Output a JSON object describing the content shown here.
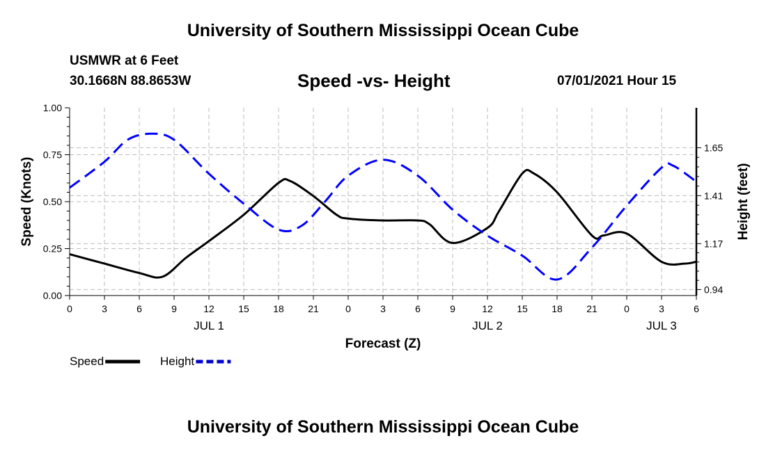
{
  "header": {
    "title": "University of Southern Mississippi Ocean Cube",
    "station": "USMWR at 6 Feet",
    "coords": "30.1668N  88.8653W",
    "datetime": "07/01/2021 Hour 15"
  },
  "footer": {
    "title": "University of Southern Mississippi Ocean Cube"
  },
  "chart_data": {
    "type": "line",
    "title": "Speed -vs- Height",
    "xlabel": "Forecast (Z)",
    "ylabel": "Speed (Knots)",
    "y2label": "Height (feet)",
    "x_hours_range": [
      0,
      54
    ],
    "ylim": [
      0,
      1.0
    ],
    "y2lim": [
      0.91,
      1.85
    ],
    "grid": true,
    "xticks": {
      "hours": [
        0,
        3,
        6,
        9,
        12,
        15,
        18,
        21,
        24,
        27,
        30,
        33,
        36,
        39,
        42,
        45,
        48,
        51,
        54
      ],
      "labels": [
        "0",
        "3",
        "6",
        "9",
        "12",
        "15",
        "18",
        "21",
        "0",
        "3",
        "6",
        "9",
        "12",
        "15",
        "18",
        "21",
        "0",
        "3",
        "6"
      ]
    },
    "day_labels": [
      {
        "hour": 12,
        "label": "JUL 1"
      },
      {
        "hour": 36,
        "label": "JUL 2"
      },
      {
        "hour": 51,
        "label": "JUL 3"
      }
    ],
    "yticks": {
      "values": [
        0,
        0.25,
        0.5,
        0.75,
        1.0
      ],
      "labels": [
        "0.00",
        "0.25",
        "0.50",
        "0.75",
        "1.00"
      ]
    },
    "y2ticks": {
      "values": [
        0.94,
        1.17,
        1.41,
        1.65
      ],
      "labels": [
        "0.94",
        "1.17",
        "1.41",
        "1.65"
      ]
    },
    "series": [
      {
        "name": "Speed",
        "axis": "left",
        "color": "#000000",
        "style": "solid",
        "x": [
          0,
          3,
          6,
          8,
          10,
          12,
          15,
          18,
          19,
          21,
          23,
          24,
          27,
          30,
          31,
          33,
          36,
          37,
          39,
          40,
          42,
          45,
          46,
          48,
          51,
          53,
          54
        ],
        "y": [
          0.22,
          0.17,
          0.12,
          0.1,
          0.2,
          0.29,
          0.43,
          0.6,
          0.61,
          0.53,
          0.43,
          0.41,
          0.4,
          0.4,
          0.38,
          0.28,
          0.36,
          0.45,
          0.65,
          0.65,
          0.55,
          0.32,
          0.32,
          0.33,
          0.18,
          0.17,
          0.18
        ]
      },
      {
        "name": "Height",
        "axis": "right",
        "color": "#0000ff",
        "style": "dashed",
        "x": [
          0,
          3,
          5,
          7,
          9,
          12,
          15,
          18,
          20,
          22,
          24,
          27,
          30,
          33,
          36,
          39,
          42,
          45,
          48,
          51,
          52,
          54
        ],
        "y": [
          1.45,
          1.58,
          1.69,
          1.72,
          1.69,
          1.52,
          1.37,
          1.24,
          1.26,
          1.38,
          1.51,
          1.59,
          1.51,
          1.34,
          1.21,
          1.11,
          0.99,
          1.15,
          1.36,
          1.55,
          1.56,
          1.48
        ]
      }
    ],
    "legend": [
      {
        "label": "Speed",
        "color": "#000000",
        "style": "solid"
      },
      {
        "label": "Height",
        "color": "#0000cc",
        "style": "dashed"
      }
    ]
  }
}
